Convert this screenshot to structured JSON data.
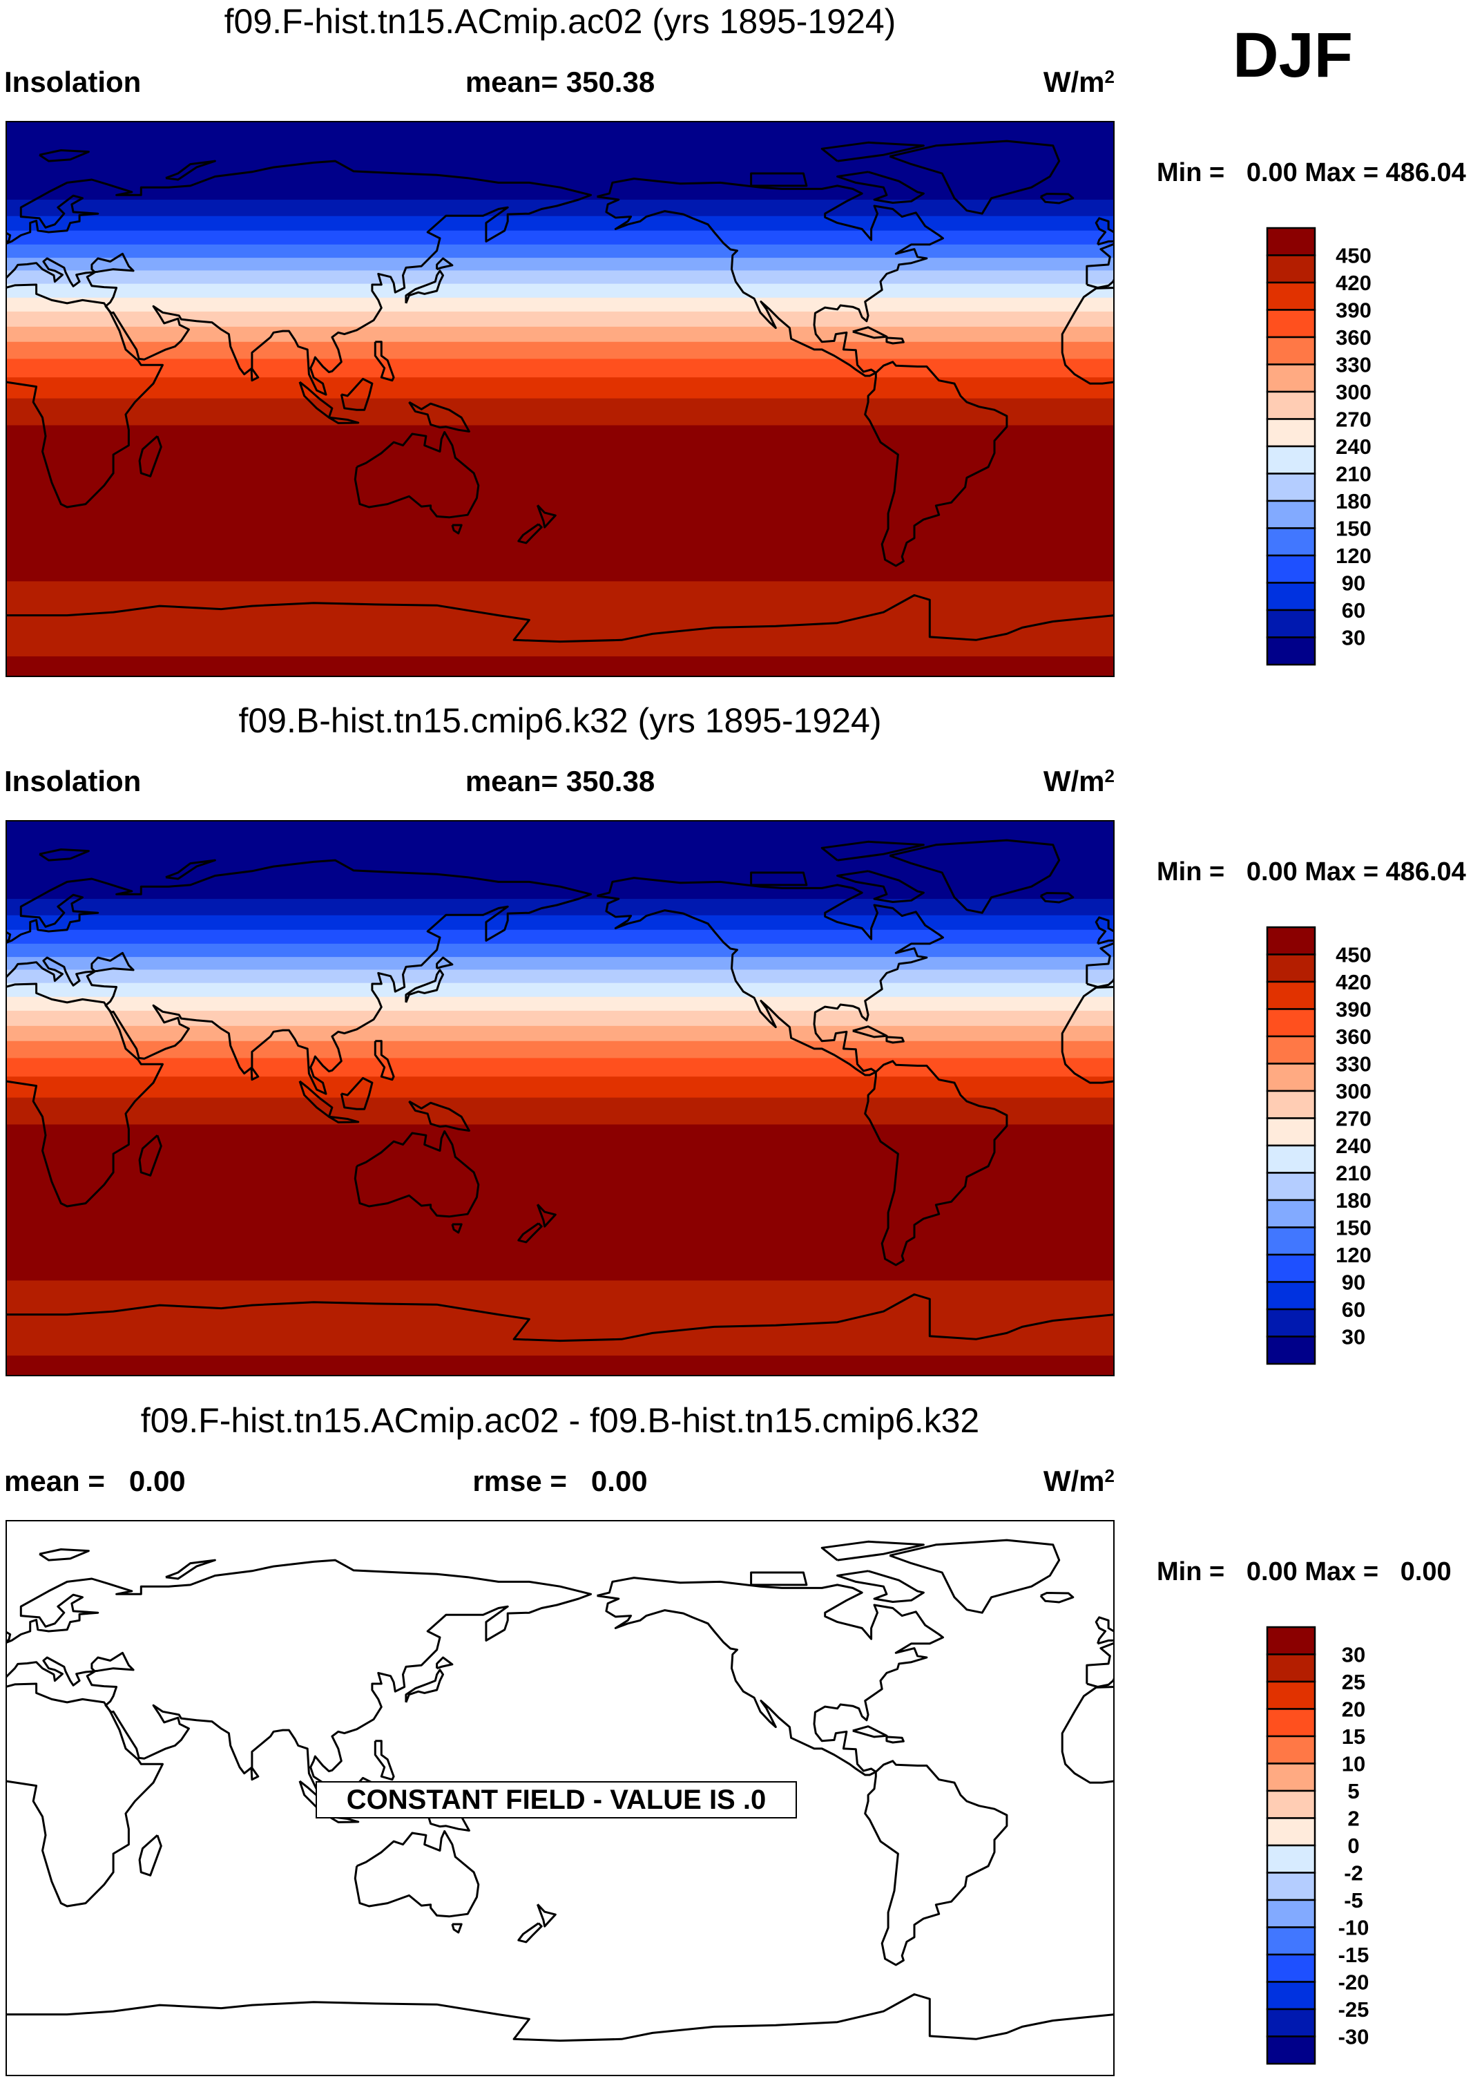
{
  "season_label": "DJF",
  "panels": [
    {
      "title": "f09.F-hist.tn15.ACmip.ac02 (yrs 1895-1924)",
      "left_label": "Insolation",
      "center_label": "mean= 350.38",
      "units_base": "W/m",
      "units_exp": "2",
      "min_max": "Min =   0.00 Max = 486.04",
      "colorbar_labels": [
        "450",
        "420",
        "390",
        "360",
        "330",
        "300",
        "270",
        "240",
        "210",
        "180",
        "150",
        "120",
        "90",
        "60",
        "30"
      ],
      "filled": true
    },
    {
      "title": "f09.B-hist.tn15.cmip6.k32 (yrs 1895-1924)",
      "left_label": "Insolation",
      "center_label": "mean= 350.38",
      "units_base": "W/m",
      "units_exp": "2",
      "min_max": "Min =   0.00 Max = 486.04",
      "colorbar_labels": [
        "450",
        "420",
        "390",
        "360",
        "330",
        "300",
        "270",
        "240",
        "210",
        "180",
        "150",
        "120",
        "90",
        "60",
        "30"
      ],
      "filled": true
    },
    {
      "title": "f09.F-hist.tn15.ACmip.ac02 - f09.B-hist.tn15.cmip6.k32",
      "left_label": "mean =   0.00",
      "center_label": "rmse =   0.00",
      "units_base": "W/m",
      "units_exp": "2",
      "min_max": "Min =   0.00 Max =   0.00",
      "colorbar_labels": [
        "30",
        "25",
        "20",
        "15",
        "10",
        "5",
        "2",
        "0",
        "-2",
        "-5",
        "-10",
        "-15",
        "-20",
        "-25",
        "-30"
      ],
      "annotation": "CONSTANT FIELD - VALUE IS .0",
      "filled": false
    }
  ],
  "chart_data": {
    "type": "heatmap",
    "projection": "cylindrical equidistant, longitude 0-360, latitude 90S-90N",
    "variable": "Insolation",
    "units": "W/m^2",
    "colors_low_to_high": [
      "#00008a",
      "#0019b0",
      "#0032e0",
      "#1e50ff",
      "#4177ff",
      "#82aaff",
      "#b4cdff",
      "#d7ebff",
      "#ffebdc",
      "#ffcdb4",
      "#ffaa82",
      "#ff7846",
      "#ff501e",
      "#e13200",
      "#b41e00",
      "#8b0000"
    ],
    "zonal_bands": [
      {
        "lat_from": 90,
        "lat_to": 64.5,
        "color_index": 0
      },
      {
        "lat_from": 64.5,
        "lat_to": 59.2,
        "color_index": 1
      },
      {
        "lat_from": 59.2,
        "lat_to": 54.5,
        "color_index": 2
      },
      {
        "lat_from": 54.5,
        "lat_to": 50.0,
        "color_index": 3
      },
      {
        "lat_from": 50.0,
        "lat_to": 45.7,
        "color_index": 4
      },
      {
        "lat_from": 45.7,
        "lat_to": 41.6,
        "color_index": 5
      },
      {
        "lat_from": 41.6,
        "lat_to": 37.3,
        "color_index": 6
      },
      {
        "lat_from": 37.3,
        "lat_to": 32.8,
        "color_index": 7
      },
      {
        "lat_from": 32.8,
        "lat_to": 28.3,
        "color_index": 8
      },
      {
        "lat_from": 28.3,
        "lat_to": 23.4,
        "color_index": 9
      },
      {
        "lat_from": 23.4,
        "lat_to": 18.5,
        "color_index": 10
      },
      {
        "lat_from": 18.5,
        "lat_to": 13.0,
        "color_index": 11
      },
      {
        "lat_from": 13.0,
        "lat_to": 7.0,
        "color_index": 12
      },
      {
        "lat_from": 7.0,
        "lat_to": 0.2,
        "color_index": 13
      },
      {
        "lat_from": 0.2,
        "lat_to": -8.5,
        "color_index": 14
      },
      {
        "lat_from": -8.5,
        "lat_to": -59.0,
        "color_index": 15
      },
      {
        "lat_from": -59.0,
        "lat_to": -83.3,
        "color_index": 14
      },
      {
        "lat_from": -83.3,
        "lat_to": -90,
        "color_index": 15
      }
    ],
    "difference_value": 0.0
  }
}
